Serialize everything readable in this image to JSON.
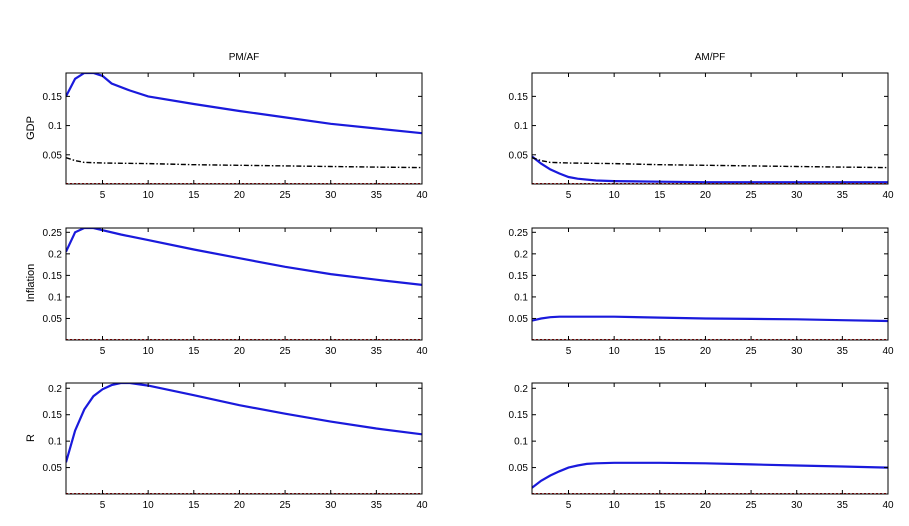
{
  "columns": [
    "PM/AF",
    "AM/PF"
  ],
  "rows": [
    "GDP",
    "Inflation",
    "R"
  ],
  "colors": {
    "solid": "#1a1adc",
    "dashed": "#000000",
    "zero": "#cc0000",
    "axes": "#000000"
  },
  "chart_data": [
    {
      "type": "line",
      "column": "PM/AF",
      "row": "GDP",
      "xlim": [
        1,
        40
      ],
      "ylim": [
        0,
        0.19
      ],
      "xticks": [
        5,
        10,
        15,
        20,
        25,
        30,
        35,
        40
      ],
      "yticks": [
        0.05,
        0.1,
        0.15
      ],
      "series": [
        {
          "style": "solid",
          "points": [
            [
              1,
              0.15
            ],
            [
              2,
              0.18
            ],
            [
              3,
              0.19
            ],
            [
              4,
              0.19
            ],
            [
              5,
              0.185
            ],
            [
              6,
              0.172
            ],
            [
              8,
              0.16
            ],
            [
              10,
              0.15
            ],
            [
              15,
              0.137
            ],
            [
              20,
              0.125
            ],
            [
              25,
              0.114
            ],
            [
              30,
              0.103
            ],
            [
              35,
              0.095
            ],
            [
              40,
              0.087
            ]
          ]
        },
        {
          "style": "dashdot",
          "points": [
            [
              1,
              0.045
            ],
            [
              2,
              0.04
            ],
            [
              3,
              0.037
            ],
            [
              5,
              0.036
            ],
            [
              10,
              0.035
            ],
            [
              15,
              0.033
            ],
            [
              20,
              0.032
            ],
            [
              25,
              0.031
            ],
            [
              30,
              0.03
            ],
            [
              35,
              0.029
            ],
            [
              40,
              0.028
            ]
          ]
        },
        {
          "style": "zero",
          "points": [
            [
              1,
              0
            ],
            [
              40,
              0
            ]
          ]
        }
      ]
    },
    {
      "type": "line",
      "column": "AM/PF",
      "row": "GDP",
      "xlim": [
        1,
        40
      ],
      "ylim": [
        0,
        0.19
      ],
      "xticks": [
        5,
        10,
        15,
        20,
        25,
        30,
        35,
        40
      ],
      "yticks": [
        0.05,
        0.1,
        0.15
      ],
      "series": [
        {
          "style": "solid",
          "points": [
            [
              1,
              0.047
            ],
            [
              2,
              0.035
            ],
            [
              3,
              0.025
            ],
            [
              4,
              0.018
            ],
            [
              5,
              0.012
            ],
            [
              6,
              0.009
            ],
            [
              8,
              0.006
            ],
            [
              10,
              0.005
            ],
            [
              15,
              0.004
            ],
            [
              20,
              0.003
            ],
            [
              25,
              0.003
            ],
            [
              30,
              0.003
            ],
            [
              35,
              0.003
            ],
            [
              40,
              0.003
            ]
          ]
        },
        {
          "style": "dashdot",
          "points": [
            [
              1,
              0.045
            ],
            [
              2,
              0.04
            ],
            [
              3,
              0.037
            ],
            [
              5,
              0.036
            ],
            [
              10,
              0.035
            ],
            [
              15,
              0.033
            ],
            [
              20,
              0.032
            ],
            [
              25,
              0.031
            ],
            [
              30,
              0.03
            ],
            [
              35,
              0.029
            ],
            [
              40,
              0.028
            ]
          ]
        },
        {
          "style": "zero",
          "points": [
            [
              1,
              0
            ],
            [
              40,
              0
            ]
          ]
        }
      ]
    },
    {
      "type": "line",
      "column": "PM/AF",
      "row": "Inflation",
      "xlim": [
        1,
        40
      ],
      "ylim": [
        0,
        0.26
      ],
      "xticks": [
        5,
        10,
        15,
        20,
        25,
        30,
        35,
        40
      ],
      "yticks": [
        0.05,
        0.1,
        0.15,
        0.2,
        0.25
      ],
      "series": [
        {
          "style": "solid",
          "points": [
            [
              1,
              0.205
            ],
            [
              2,
              0.25
            ],
            [
              3,
              0.26
            ],
            [
              4,
              0.26
            ],
            [
              5,
              0.255
            ],
            [
              7,
              0.245
            ],
            [
              10,
              0.232
            ],
            [
              15,
              0.21
            ],
            [
              20,
              0.19
            ],
            [
              25,
              0.17
            ],
            [
              30,
              0.153
            ],
            [
              35,
              0.14
            ],
            [
              40,
              0.128
            ]
          ]
        },
        {
          "style": "zero",
          "points": [
            [
              1,
              0
            ],
            [
              40,
              0
            ]
          ]
        }
      ]
    },
    {
      "type": "line",
      "column": "AM/PF",
      "row": "Inflation",
      "xlim": [
        1,
        40
      ],
      "ylim": [
        0,
        0.26
      ],
      "xticks": [
        5,
        10,
        15,
        20,
        25,
        30,
        35,
        40
      ],
      "yticks": [
        0.05,
        0.1,
        0.15,
        0.2,
        0.25
      ],
      "series": [
        {
          "style": "solid",
          "points": [
            [
              1,
              0.045
            ],
            [
              2,
              0.05
            ],
            [
              3,
              0.053
            ],
            [
              4,
              0.054
            ],
            [
              5,
              0.054
            ],
            [
              10,
              0.054
            ],
            [
              15,
              0.052
            ],
            [
              20,
              0.05
            ],
            [
              25,
              0.049
            ],
            [
              30,
              0.048
            ],
            [
              35,
              0.046
            ],
            [
              40,
              0.044
            ]
          ]
        },
        {
          "style": "zero",
          "points": [
            [
              1,
              0
            ],
            [
              40,
              0
            ]
          ]
        }
      ]
    },
    {
      "type": "line",
      "column": "PM/AF",
      "row": "R",
      "xlim": [
        1,
        40
      ],
      "ylim": [
        0,
        0.21
      ],
      "xticks": [
        5,
        10,
        15,
        20,
        25,
        30,
        35,
        40
      ],
      "yticks": [
        0.05,
        0.1,
        0.15,
        0.2
      ],
      "series": [
        {
          "style": "solid",
          "points": [
            [
              1,
              0.06
            ],
            [
              2,
              0.12
            ],
            [
              3,
              0.16
            ],
            [
              4,
              0.185
            ],
            [
              5,
              0.198
            ],
            [
              6,
              0.206
            ],
            [
              7,
              0.21
            ],
            [
              8,
              0.21
            ],
            [
              10,
              0.205
            ],
            [
              15,
              0.187
            ],
            [
              20,
              0.168
            ],
            [
              25,
              0.152
            ],
            [
              30,
              0.137
            ],
            [
              35,
              0.124
            ],
            [
              40,
              0.113
            ]
          ]
        },
        {
          "style": "zero",
          "points": [
            [
              1,
              0
            ],
            [
              40,
              0
            ]
          ]
        }
      ]
    },
    {
      "type": "line",
      "column": "AM/PF",
      "row": "R",
      "xlim": [
        1,
        40
      ],
      "ylim": [
        0,
        0.21
      ],
      "xticks": [
        5,
        10,
        15,
        20,
        25,
        30,
        35,
        40
      ],
      "yticks": [
        0.05,
        0.1,
        0.15,
        0.2
      ],
      "series": [
        {
          "style": "solid",
          "points": [
            [
              1,
              0.012
            ],
            [
              2,
              0.025
            ],
            [
              3,
              0.035
            ],
            [
              4,
              0.043
            ],
            [
              5,
              0.05
            ],
            [
              6,
              0.054
            ],
            [
              7,
              0.057
            ],
            [
              8,
              0.058
            ],
            [
              10,
              0.059
            ],
            [
              15,
              0.059
            ],
            [
              20,
              0.058
            ],
            [
              25,
              0.056
            ],
            [
              30,
              0.054
            ],
            [
              35,
              0.052
            ],
            [
              40,
              0.05
            ]
          ]
        },
        {
          "style": "zero",
          "points": [
            [
              1,
              0
            ],
            [
              40,
              0
            ]
          ]
        }
      ]
    }
  ]
}
